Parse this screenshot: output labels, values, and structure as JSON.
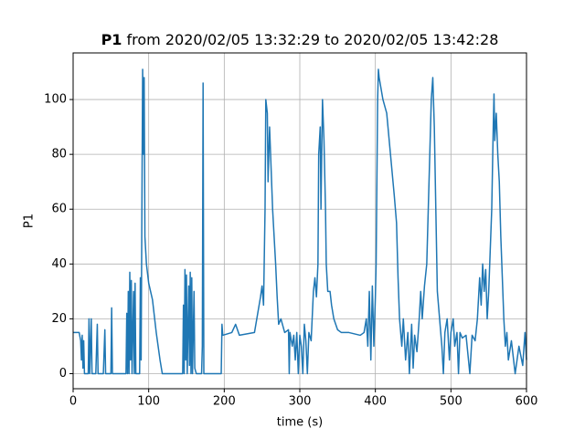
{
  "chart_data": {
    "type": "line",
    "title_name": "P1",
    "title": "from 2020/02/05 13:32:29 to 2020/02/05 13:42:28",
    "xlabel": "time (s)",
    "ylabel": "P1",
    "xlim": [
      0,
      600
    ],
    "ylim": [
      -5.5,
      117
    ],
    "xticks": [
      0,
      100,
      200,
      300,
      400,
      500,
      600
    ],
    "yticks": [
      0,
      20,
      40,
      60,
      80,
      100
    ],
    "grid": true,
    "series": [
      {
        "color": "#1f77b4",
        "x": [
          0,
          8,
          10,
          11,
          12,
          13,
          14,
          15,
          18,
          20,
          21,
          22,
          24,
          25,
          30,
          32,
          33,
          40,
          42,
          43,
          50,
          51,
          52,
          70,
          71,
          72,
          73,
          74,
          75,
          76,
          77,
          78,
          80,
          81,
          82,
          83,
          88,
          89,
          90,
          91,
          92,
          93,
          94,
          95,
          97,
          100,
          105,
          110,
          115,
          118,
          145,
          146,
          147,
          148,
          149,
          150,
          151,
          153,
          154,
          155,
          156,
          157,
          158,
          160,
          161,
          163,
          170,
          171,
          172,
          173,
          196,
          197,
          198,
          210,
          215,
          220,
          240,
          248,
          250,
          252,
          254,
          255,
          257,
          258,
          260,
          262,
          264,
          266,
          268,
          270,
          272,
          275,
          280,
          285,
          286,
          287,
          290,
          292,
          294,
          296,
          298,
          300,
          302,
          304,
          306,
          308,
          310,
          312,
          315,
          318,
          320,
          322,
          324,
          325,
          327,
          328,
          330,
          332,
          334,
          335,
          337,
          340,
          342,
          345,
          350,
          355,
          365,
          380,
          385,
          388,
          390,
          392,
          394,
          396,
          398,
          400,
          401,
          403,
          404,
          405,
          410,
          415,
          420,
          425,
          428,
          430,
          432,
          435,
          437,
          440,
          443,
          445,
          448,
          450,
          452,
          455,
          458,
          460,
          462,
          465,
          468,
          470,
          472,
          474,
          476,
          478,
          480,
          482,
          485,
          488,
          490,
          492,
          495,
          498,
          500,
          503,
          505,
          508,
          510,
          512,
          515,
          520,
          525,
          528,
          532,
          535,
          538,
          540,
          542,
          544,
          546,
          548,
          550,
          552,
          554,
          556,
          557,
          558,
          560,
          562,
          564,
          566,
          568,
          570,
          572,
          574,
          576,
          580,
          585,
          590,
          595,
          598,
          600
        ],
        "values": [
          15,
          15,
          12,
          5,
          14,
          2,
          12,
          0,
          0,
          0,
          20,
          0,
          20,
          0,
          0,
          18,
          0,
          0,
          16,
          0,
          0,
          24,
          0,
          0,
          22,
          0,
          30,
          0,
          37,
          5,
          34,
          0,
          30,
          0,
          33,
          0,
          0,
          35,
          5,
          60,
          111,
          80,
          108,
          50,
          40,
          33,
          27,
          15,
          5,
          0,
          0,
          25,
          0,
          38,
          5,
          36,
          0,
          32,
          3,
          37,
          0,
          35,
          0,
          30,
          2,
          0,
          0,
          10,
          106,
          0,
          0,
          18,
          14,
          15,
          18,
          14,
          15,
          28,
          32,
          25,
          60,
          100,
          95,
          70,
          90,
          75,
          60,
          50,
          40,
          28,
          18,
          20,
          15,
          16,
          0,
          15,
          10,
          14,
          5,
          15,
          0,
          14,
          10,
          0,
          18,
          12,
          0,
          15,
          12,
          30,
          35,
          28,
          40,
          80,
          90,
          60,
          100,
          85,
          60,
          40,
          30,
          30,
          25,
          20,
          16,
          15,
          15,
          14,
          15,
          20,
          10,
          30,
          5,
          32,
          10,
          28,
          40,
          100,
          111,
          108,
          100,
          95,
          80,
          65,
          55,
          35,
          20,
          10,
          20,
          5,
          15,
          0,
          18,
          2,
          14,
          8,
          20,
          30,
          20,
          32,
          40,
          60,
          80,
          100,
          108,
          90,
          60,
          30,
          20,
          10,
          0,
          15,
          20,
          5,
          15,
          20,
          10,
          15,
          0,
          15,
          13,
          14,
          0,
          14,
          12,
          20,
          35,
          25,
          40,
          30,
          38,
          20,
          30,
          45,
          60,
          90,
          102,
          85,
          95,
          80,
          70,
          50,
          35,
          20,
          10,
          15,
          5,
          12,
          0,
          10,
          3,
          15,
          5
        ]
      }
    ]
  }
}
